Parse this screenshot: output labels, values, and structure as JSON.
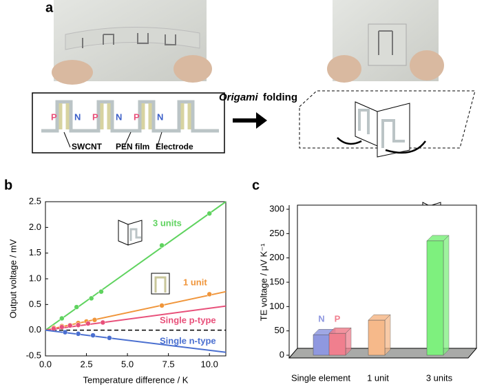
{
  "panel_labels": [
    "a",
    "b",
    "c"
  ],
  "schematic": {
    "p_label": "P",
    "n_label": "N",
    "parts": [
      "SWCNT",
      "PEN film",
      "Electrode"
    ],
    "folding_italic": "Origami",
    "folding_rest": "folding"
  },
  "chart_data": [
    {
      "type": "scatter",
      "x_label": "Temperature difference / K",
      "y_label": "Output voltage / mV",
      "xlim": [
        0,
        11
      ],
      "ylim": [
        -0.5,
        2.5
      ],
      "xticks": [
        {
          "value": 0,
          "label": "0.0"
        },
        2.5,
        {
          "value": 5,
          "label": "5.0"
        },
        7.5,
        {
          "value": 10,
          "label": "10.0"
        }
      ],
      "yticks": [
        -0.5,
        {
          "value": 0,
          "label": "0.0"
        },
        0.5,
        {
          "value": 1,
          "label": "1.0"
        },
        1.5,
        {
          "value": 2,
          "label": "2.0"
        },
        2.5
      ],
      "series": [
        {
          "name": "3 units",
          "color": "#5fd35f",
          "x": [
            1,
            1.9,
            2.8,
            3.4,
            7.1,
            10.0
          ],
          "values": [
            0.23,
            0.45,
            0.62,
            0.75,
            1.65,
            2.27
          ],
          "fit": {
            "x": [
              0,
              11
            ],
            "values": [
              0,
              2.5
            ]
          }
        },
        {
          "name": "1 unit",
          "color": "#f0953a",
          "x": [
            0.5,
            1,
            1.5,
            2,
            2.5,
            3,
            7.1,
            10
          ],
          "values": [
            0.05,
            0.08,
            0.1,
            0.14,
            0.17,
            0.2,
            0.48,
            0.7
          ],
          "fit": {
            "x": [
              0,
              11
            ],
            "values": [
              0,
              0.75
            ]
          }
        },
        {
          "name": "Single p-type",
          "color": "#e8507a",
          "x": [
            0.5,
            1,
            1.5,
            2,
            2.6,
            3.5
          ],
          "values": [
            0.03,
            0.06,
            0.09,
            0.1,
            0.13,
            0.15
          ],
          "fit": {
            "x": [
              0,
              11
            ],
            "values": [
              0,
              0.47
            ]
          }
        },
        {
          "name": "Single n-type",
          "color": "#4a6fd0",
          "x": [
            1.2,
            2,
            2.9,
            3.9
          ],
          "values": [
            -0.04,
            -0.07,
            -0.1,
            -0.15
          ],
          "fit": {
            "x": [
              0,
              11
            ],
            "values": [
              0,
              -0.43
            ]
          }
        }
      ]
    },
    {
      "type": "bar3d",
      "y_label": "TE voltage / μV K⁻¹",
      "ylim": [
        0,
        300
      ],
      "yticks": [
        0,
        50,
        100,
        150,
        200,
        250,
        300
      ],
      "groups": [
        {
          "name": "Single element",
          "bars": [
            {
              "label": "N",
              "value": 42,
              "color": "#8f98e0"
            },
            {
              "label": "P",
              "value": 45,
              "color": "#f07f8e"
            }
          ]
        },
        {
          "name": "1 unit",
          "bars": [
            {
              "value": 72,
              "color": "#f6b98a"
            }
          ]
        },
        {
          "name": "3 units",
          "bars": [
            {
              "value": 235,
              "color": "#7ef07e"
            }
          ]
        }
      ]
    }
  ]
}
